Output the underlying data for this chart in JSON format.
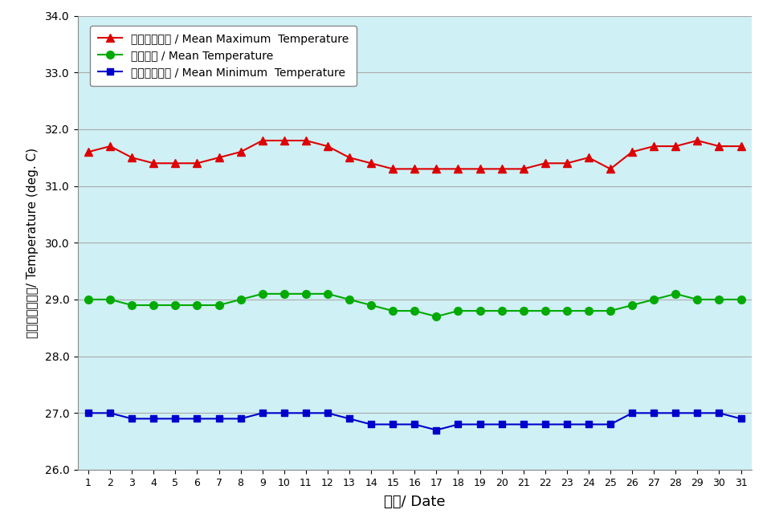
{
  "days": [
    1,
    2,
    3,
    4,
    5,
    6,
    7,
    8,
    9,
    10,
    11,
    12,
    13,
    14,
    15,
    16,
    17,
    18,
    19,
    20,
    21,
    22,
    23,
    24,
    25,
    26,
    27,
    28,
    29,
    30,
    31
  ],
  "mean_max": [
    31.6,
    31.7,
    31.5,
    31.4,
    31.4,
    31.4,
    31.5,
    31.6,
    31.8,
    31.8,
    31.8,
    31.7,
    31.5,
    31.4,
    31.3,
    31.3,
    31.3,
    31.3,
    31.3,
    31.3,
    31.3,
    31.4,
    31.4,
    31.5,
    31.3,
    31.6,
    31.7,
    31.7,
    31.8,
    31.7,
    31.7
  ],
  "mean_temp": [
    29.0,
    29.0,
    28.9,
    28.9,
    28.9,
    28.9,
    28.9,
    29.0,
    29.1,
    29.1,
    29.1,
    29.1,
    29.0,
    28.9,
    28.8,
    28.8,
    28.7,
    28.8,
    28.8,
    28.8,
    28.8,
    28.8,
    28.8,
    28.8,
    28.8,
    28.9,
    29.0,
    29.1,
    29.0,
    29.0,
    29.0
  ],
  "mean_min": [
    27.0,
    27.0,
    26.9,
    26.9,
    26.9,
    26.9,
    26.9,
    26.9,
    27.0,
    27.0,
    27.0,
    27.0,
    26.9,
    26.8,
    26.8,
    26.8,
    26.7,
    26.8,
    26.8,
    26.8,
    26.8,
    26.8,
    26.8,
    26.8,
    26.8,
    27.0,
    27.0,
    27.0,
    27.0,
    27.0,
    26.9
  ],
  "ylim": [
    26.0,
    34.0
  ],
  "yticks": [
    26.0,
    27.0,
    28.0,
    29.0,
    30.0,
    31.0,
    32.0,
    33.0,
    34.0
  ],
  "xlabel": "日期/ Date",
  "ylabel": "溫度（攝氏度）/ Temperature (deg. C)",
  "legend_labels": [
    "平均最高氣溫 / Mean Maximum  Temperature",
    "平均氣溫 / Mean Temperature",
    "平均最低氣溫 / Mean Minimum  Temperature"
  ],
  "line_colors": [
    "#dd0000",
    "#00aa00",
    "#0000cc"
  ],
  "marker_styles": [
    "^",
    "o",
    "s"
  ],
  "marker_sizes": [
    7,
    7,
    6
  ],
  "bg_color": "#cff0f5",
  "outer_bg_color": "#ffffff",
  "grid_color": "#aaaaaa",
  "line_width": 1.5
}
